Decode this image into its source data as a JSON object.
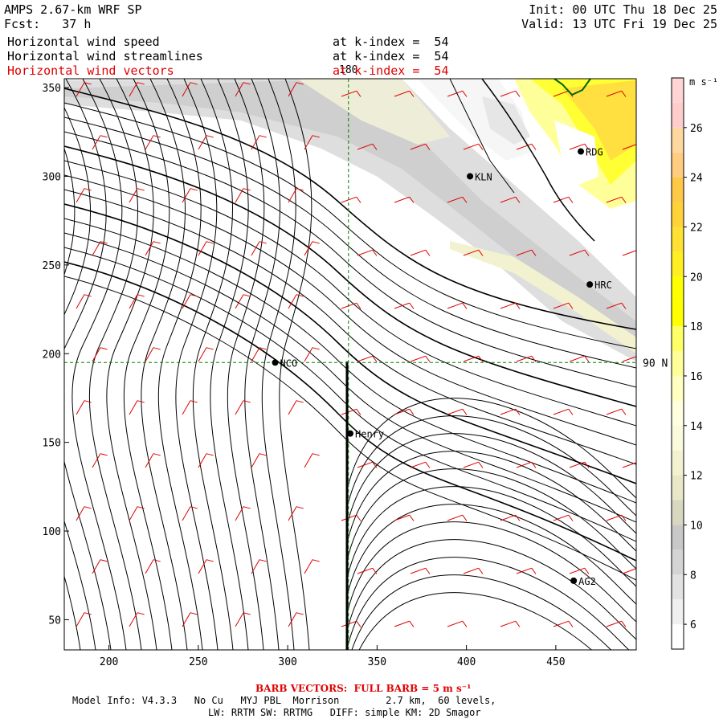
{
  "header": {
    "model_title": "AMPS 2.67-km WRF SP",
    "forecast": "Fcst:   37 h",
    "init": "Init: 00 UTC Thu 18 Dec 25",
    "valid": "Valid: 13 UTC Fri 19 Dec 25",
    "fields": [
      {
        "name": "Horizontal wind speed",
        "level": "at k-index =  54",
        "color": "#000000"
      },
      {
        "name": "Horizontal wind streamlines",
        "level": "at k-index =  54",
        "color": "#000000"
      },
      {
        "name": "Horizontal wind vectors",
        "level": "at k-index =  54",
        "color": "#e00000"
      }
    ]
  },
  "map": {
    "x_range": [
      175,
      495
    ],
    "y_range": [
      33,
      355
    ],
    "x_ticks": [
      200,
      250,
      300,
      350,
      400,
      450
    ],
    "y_ticks": [
      50,
      100,
      150,
      200,
      250,
      300,
      350
    ],
    "x_tick_labels": [
      "200",
      "250",
      "300",
      "350",
      "400",
      "450"
    ],
    "y_tick_labels": [
      "50",
      "100",
      "150",
      "200",
      "250",
      "300",
      "350"
    ],
    "meridian_label": "180",
    "meridian_x": 334,
    "parallel_label": "90 N",
    "parallel_y": 195,
    "stations": [
      {
        "name": "NCO",
        "x": 293,
        "y": 195
      },
      {
        "name": "Henry",
        "x": 335,
        "y": 155
      },
      {
        "name": "KLN",
        "x": 402,
        "y": 300
      },
      {
        "name": "RDG",
        "x": 464,
        "y": 314
      },
      {
        "name": "HRC",
        "x": 469,
        "y": 239
      },
      {
        "name": "AG2",
        "x": 460,
        "y": 72
      }
    ],
    "colors": {
      "streamline": "#000000",
      "barb": "#e00000",
      "grid": "#008000",
      "coast": "#006400"
    }
  },
  "colorbar": {
    "unit_label": "m s⁻¹",
    "levels": [
      5,
      6,
      7,
      8,
      9,
      10,
      11,
      12,
      13,
      14,
      15,
      16,
      17,
      18,
      19,
      20,
      21,
      22,
      23,
      24,
      25,
      26,
      27,
      28
    ],
    "tick_labels": [
      "6",
      "8",
      "10",
      "12",
      "14",
      "16",
      "18",
      "20",
      "22",
      "24",
      "26"
    ],
    "colors": [
      "#ffffff",
      "#f0f0f0",
      "#e2e2e2",
      "#d4d4d4",
      "#c8c8c8",
      "#d8d8c0",
      "#e8e8c8",
      "#f2f2d0",
      "#fafadc",
      "#ffffe0",
      "#ffffc0",
      "#ffff99",
      "#ffff66",
      "#ffff00",
      "#ffff00",
      "#ffee22",
      "#ffe033",
      "#ffd23a",
      "#ffc845",
      "#ffcc80",
      "#ffd8a0",
      "#ffcccc",
      "#ffd4d4"
    ]
  },
  "footer": {
    "barb_text": "BARB VECTORS:  FULL BARB = 5 m s⁻¹",
    "model_info_1": "Model Info: V4.3.3   No Cu   MYJ PBL  Morrison        2.7 km,  60 levels,",
    "model_info_2": "LW: RRTM SW: RRTMG   DIFF: simple KM: 2D Smagor"
  }
}
